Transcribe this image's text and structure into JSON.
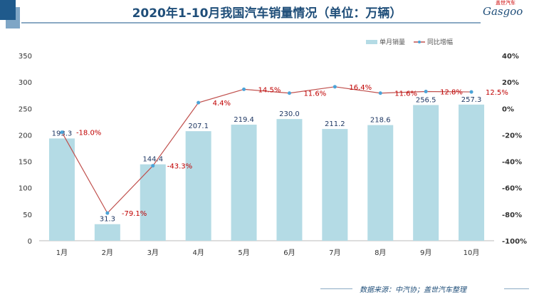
{
  "title": "2020年1-10月我国汽车销量情况（单位：万辆）",
  "logo": {
    "text": "Gasgoo",
    "cn": "盖世汽车"
  },
  "source": "数据来源：中汽协；盖世汽车整理",
  "chart_data": {
    "type": "bar+line",
    "categories": [
      "1月",
      "2月",
      "3月",
      "4月",
      "5月",
      "6月",
      "7月",
      "8月",
      "9月",
      "10月"
    ],
    "series": [
      {
        "name": "单月销量",
        "type": "bar",
        "axis": "left",
        "color": "#b4dbe5",
        "values": [
          193.3,
          31.3,
          144.4,
          207.1,
          219.4,
          230.0,
          211.2,
          218.6,
          256.5,
          257.3
        ],
        "labels": [
          "193.3",
          "31.3",
          "144.4",
          "207.1",
          "219.4",
          "230.0",
          "211.2",
          "218.6",
          "256.5",
          "257.3"
        ]
      },
      {
        "name": "同比增幅",
        "type": "line",
        "axis": "right",
        "color": "#c0504d",
        "marker_color": "#4aa3d8",
        "values": [
          -18.0,
          -79.1,
          -43.3,
          4.4,
          14.5,
          11.6,
          16.4,
          11.6,
          12.8,
          12.5
        ],
        "labels": [
          "-18.0%",
          "-79.1%",
          "-43.3%",
          "4.4%",
          "14.5%",
          "11.6%",
          "16.4%",
          "11.6%",
          "12.8%",
          "12.5%"
        ]
      }
    ],
    "yleft": {
      "min": 0,
      "max": 350,
      "ticks": [
        "0",
        "50",
        "100",
        "150",
        "200",
        "250",
        "300",
        "350"
      ]
    },
    "yright": {
      "min": -100,
      "max": 40,
      "ticks": [
        "-100%",
        "-80%",
        "-60%",
        "-40%",
        "-20%",
        "0%",
        "20%",
        "40%"
      ]
    },
    "legend": "top-right",
    "grid": false
  }
}
